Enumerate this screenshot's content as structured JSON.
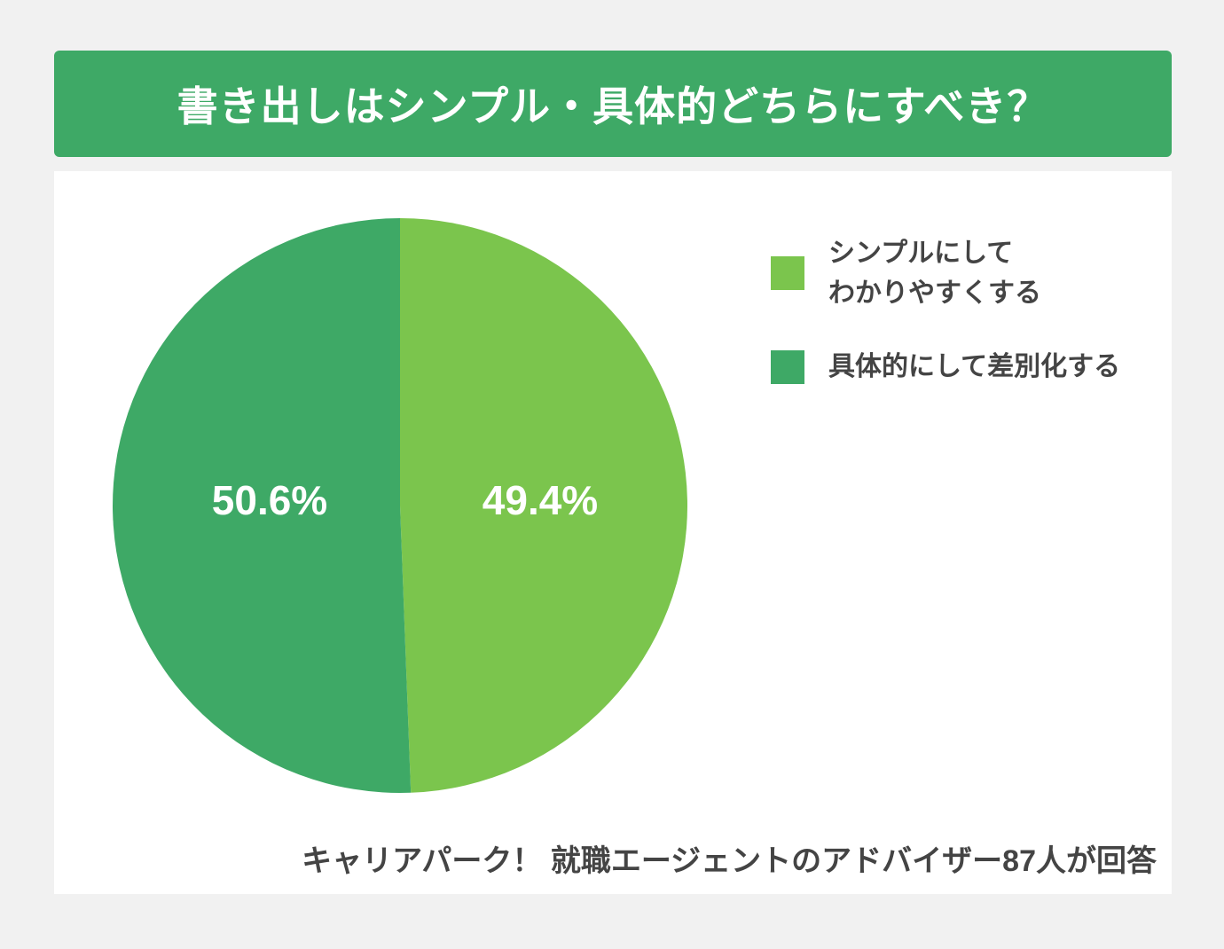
{
  "header": {
    "title": "書き出しはシンプル・具体的どちらにすべき？"
  },
  "colors": {
    "page_background": "#F1F1F1",
    "card_background": "#FFFFFF",
    "banner_background": "#3EA966",
    "title_text": "#FFFFFF",
    "body_text": "#444444",
    "slice_label_text": "#FFFFFF"
  },
  "chart_data": {
    "type": "pie",
    "title": "書き出しはシンプル・具体的どちらにすべき？",
    "slices": [
      {
        "label": "シンプルにしてわかりやすくする",
        "value": 49.4,
        "display": "49.4%",
        "color": "#7BC54D"
      },
      {
        "label": "具体的にして差別化する",
        "value": 50.6,
        "display": "50.6%",
        "color": "#3EA966"
      }
    ],
    "start_angle_deg": 0,
    "direction": "clockwise",
    "legend_position": "right",
    "source_note": "キャリアパーク！ 就職エージェントのアドバイザー87人が回答"
  },
  "legend": {
    "items": [
      {
        "lines": [
          "シンプルにして",
          "わかりやすくする"
        ],
        "color": "#7BC54D"
      },
      {
        "lines": [
          "具体的にして差別化する"
        ],
        "color": "#3EA966"
      }
    ]
  },
  "footer": {
    "note": "キャリアパーク！ 就職エージェントのアドバイザー87人が回答"
  }
}
